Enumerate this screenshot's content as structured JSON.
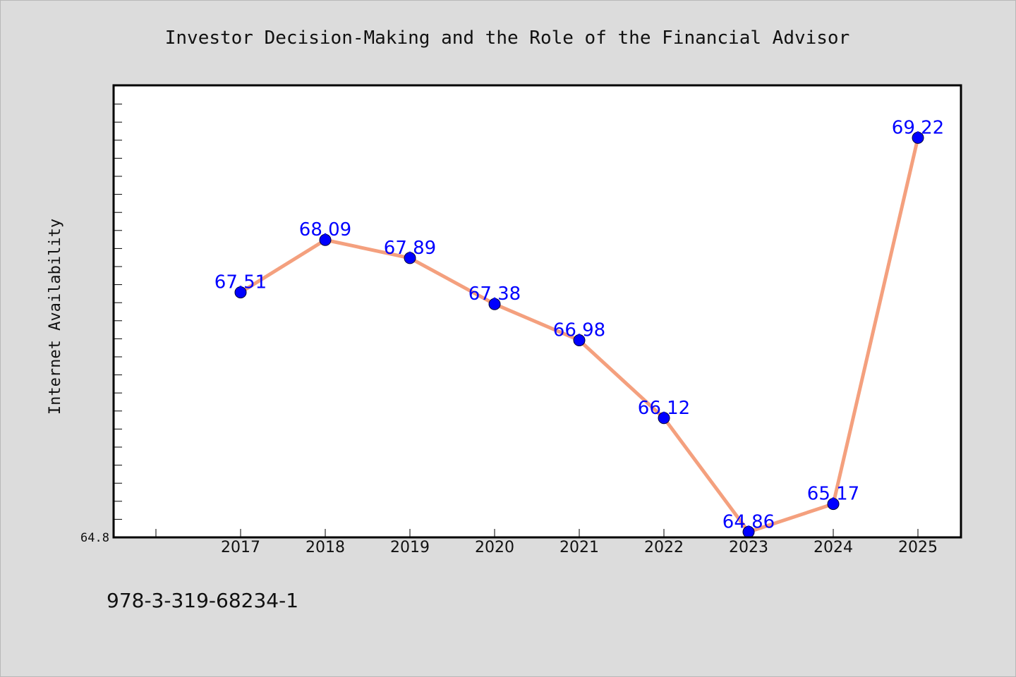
{
  "chart_data": {
    "type": "line",
    "title": "Investor Decision-Making and the Role of the Financial Advisor",
    "xlabel": "",
    "ylabel": "Internet Availability",
    "categories": [
      "2017",
      "2018",
      "2019",
      "2020",
      "2021",
      "2022",
      "2023",
      "2024",
      "2025"
    ],
    "series": [
      {
        "values": [
          67.51,
          68.09,
          67.89,
          67.38,
          66.98,
          66.12,
          64.86,
          65.17,
          69.22
        ],
        "labels": [
          "67.51",
          "68.09",
          "67.89",
          "67.38",
          "66.98",
          "66.12",
          "64.86",
          "65.17",
          "69.22"
        ]
      }
    ],
    "ylim": [
      64.8,
      69.8
    ],
    "ytick_labels": [
      "64.8"
    ],
    "grid": false,
    "line_color": "#f4a07e",
    "marker_color": "#0000ff",
    "label_color": "#0000ff"
  },
  "footer": {
    "isbn": "978-3-319-68234-1"
  }
}
